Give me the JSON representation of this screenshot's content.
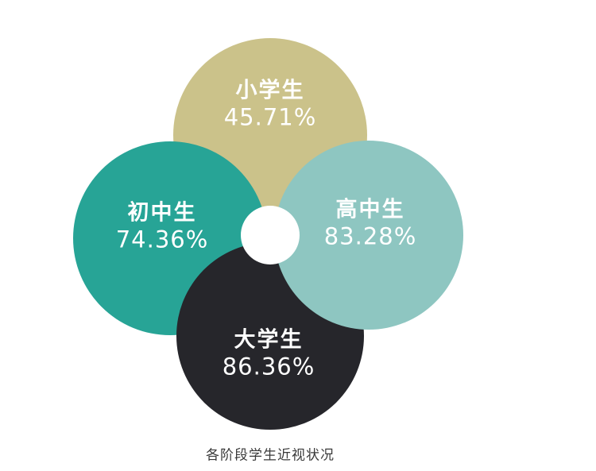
{
  "chart_data": {
    "type": "venn",
    "title": "各阶段学生近视状况",
    "categories": [
      "小学生",
      "初中生",
      "高中生",
      "大学生"
    ],
    "values": [
      45.71,
      74.36,
      83.28,
      86.36
    ],
    "unit": "%",
    "legend_position": "none",
    "grid": false
  },
  "circles": {
    "elementary": {
      "label": "小学生",
      "value": "45.71%",
      "color": "#cbc28a",
      "position": "top"
    },
    "junior": {
      "label": "初中生",
      "value": "74.36%",
      "color": "#27a496",
      "position": "left"
    },
    "senior": {
      "label": "高中生",
      "value": "83.28%",
      "color": "#8ec6c1",
      "position": "right"
    },
    "college": {
      "label": "大学生",
      "value": "86.36%",
      "color": "#26262b",
      "position": "bottom"
    }
  },
  "center_circle_color": "#ffffff",
  "caption": "各阶段学生近视状况"
}
